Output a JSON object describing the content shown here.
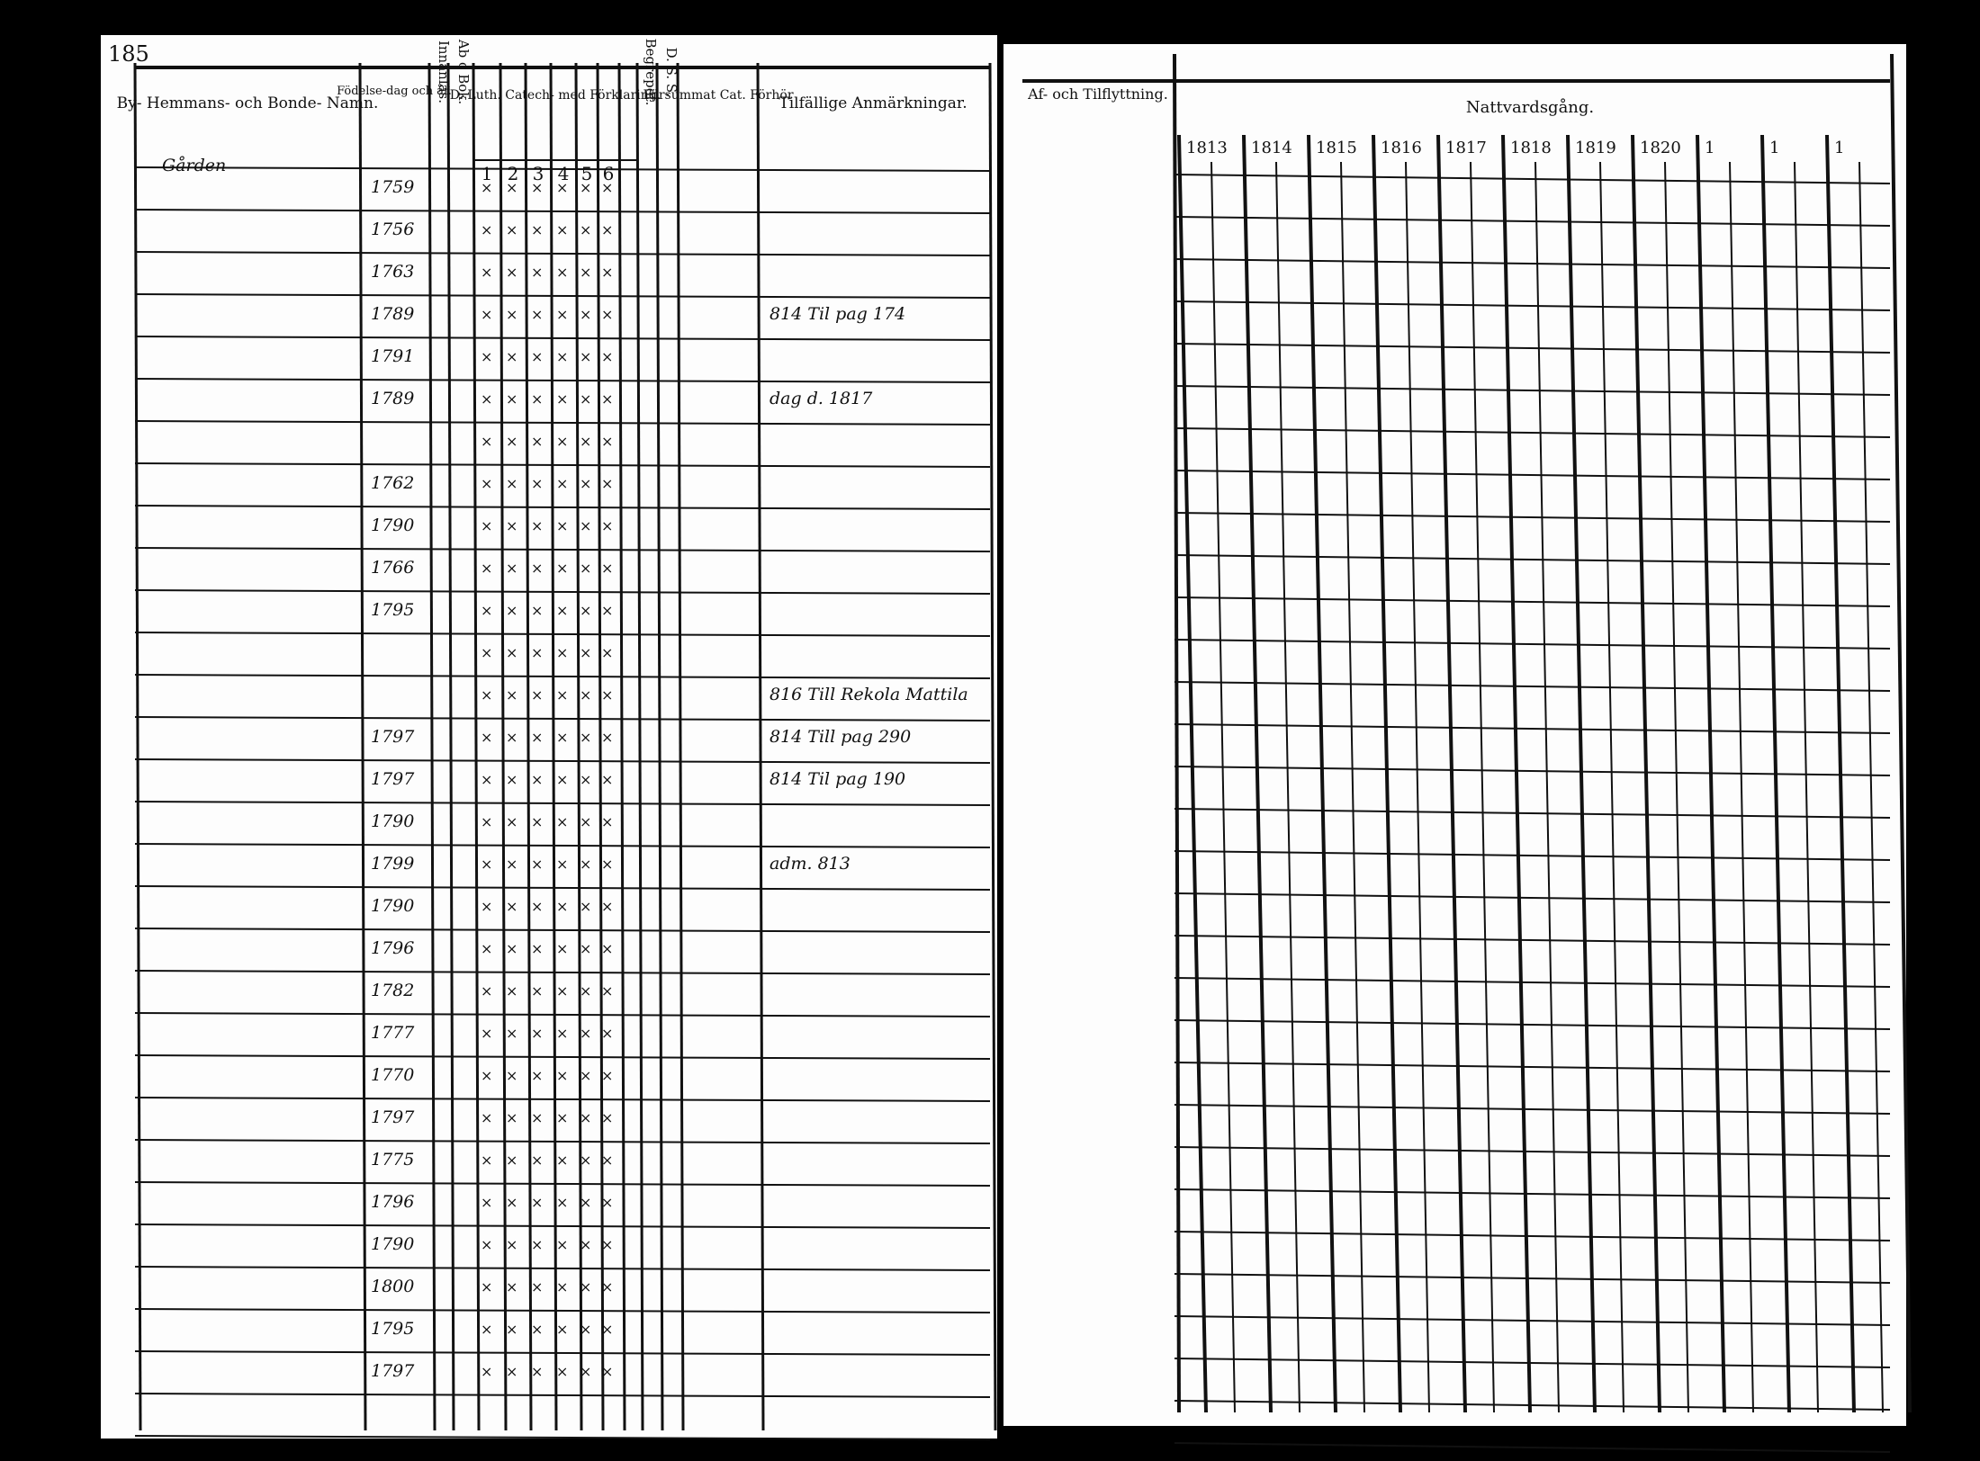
{
  "page_number": "185",
  "left_header": {
    "name_col": "By- Hemmans- och Bonde- Namn.",
    "birth_col": "Födelse-dag och år.",
    "innanlas": "Innanläs.",
    "abc": "Ab c Bok.",
    "catechism": "D. Luth. Catech- med Förklaring.",
    "catechism_parts": [
      "1",
      "2",
      "3",
      "4",
      "5",
      "6"
    ],
    "dss": "D. S. S.",
    "begrepet": "Begrepet.",
    "forsummat": "Försummat Cat. Förhör",
    "notes_col": "Tilfällige Anmärkningar."
  },
  "section": "Gården",
  "rows": [
    {
      "born": "1759"
    },
    {
      "born": "1756"
    },
    {
      "born": "1763"
    },
    {
      "born": "1789",
      "note": "814 Til pag 174"
    },
    {
      "born": "1791"
    },
    {
      "born": "1789",
      "note": "dag d. 1817"
    },
    {},
    {
      "born": "1762"
    },
    {
      "born": "1790"
    },
    {
      "born": "1766"
    },
    {
      "born": "1795"
    },
    {},
    {
      "note": "816 Till Rekola Mattila"
    },
    {
      "born": "1797",
      "note": "814 Till pag 290"
    },
    {
      "born": "1797",
      "note": "814 Til pag 190"
    },
    {
      "born": "1790"
    },
    {
      "born": "1799",
      "note": "adm. 813"
    },
    {
      "born": "1790"
    },
    {
      "born": "1796"
    },
    {
      "born": "1782"
    },
    {
      "born": "1777"
    },
    {
      "born": "1770"
    },
    {
      "born": "1797"
    },
    {
      "born": "1775"
    },
    {
      "born": "1796"
    },
    {
      "born": "1790"
    },
    {
      "born": "1800"
    },
    {
      "born": "1795"
    },
    {
      "born": "1797"
    }
  ],
  "right_header": {
    "moving_col": "Af- och Tilflyttning.",
    "communion_col": "Nattvardsgång.",
    "years": [
      "1813",
      "1814",
      "1815",
      "1816",
      "1817",
      "1818",
      "1819",
      "1820",
      "1",
      "1",
      "1"
    ]
  }
}
